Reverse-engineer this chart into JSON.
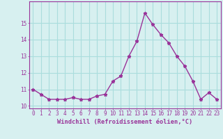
{
  "x": [
    0,
    1,
    2,
    3,
    4,
    5,
    6,
    7,
    8,
    9,
    10,
    11,
    12,
    13,
    14,
    15,
    16,
    17,
    18,
    19,
    20,
    21,
    22,
    23
  ],
  "y": [
    11.0,
    10.7,
    10.4,
    10.4,
    10.4,
    10.5,
    10.4,
    10.4,
    10.6,
    10.7,
    11.5,
    11.8,
    13.0,
    13.9,
    15.6,
    14.9,
    14.3,
    13.8,
    13.0,
    12.4,
    11.5,
    10.4,
    10.8,
    10.4
  ],
  "line_color": "#993399",
  "marker": "*",
  "bg_color": "#d7f0f0",
  "grid_color": "#aadddd",
  "axis_color": "#993399",
  "xlabel": "Windchill (Refroidissement éolien,°C)",
  "xlim": [
    -0.5,
    23.5
  ],
  "ylim": [
    9.85,
    16.3
  ],
  "yticks": [
    10,
    11,
    12,
    13,
    14,
    15
  ],
  "xticks": [
    0,
    1,
    2,
    3,
    4,
    5,
    6,
    7,
    8,
    9,
    10,
    11,
    12,
    13,
    14,
    15,
    16,
    17,
    18,
    19,
    20,
    21,
    22,
    23
  ],
  "tick_color": "#993399",
  "label_fontsize": 6.2,
  "tick_fontsize": 5.5
}
